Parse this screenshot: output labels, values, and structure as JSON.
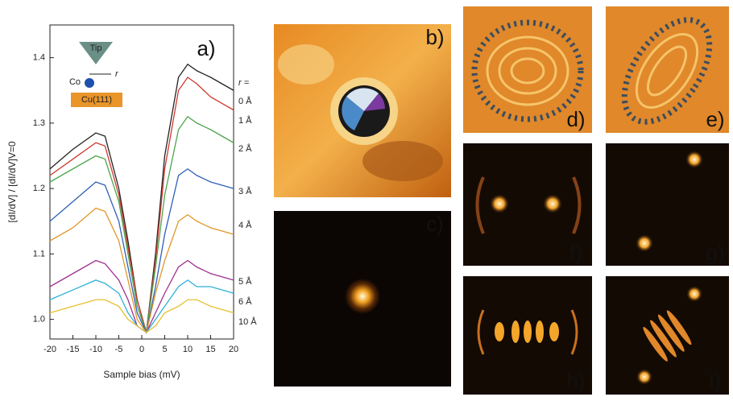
{
  "chart_data": {
    "type": "line",
    "xlabel": "Sample bias (mV)",
    "ylabel": "[dI/dV] / [dI/dV]V=0",
    "legend_title": "r =",
    "x": [
      -20,
      -15,
      -10,
      -8,
      -5,
      -3,
      -1,
      1,
      3,
      5,
      8,
      10,
      12,
      15,
      20
    ],
    "xlim": [
      -20,
      20
    ],
    "xticks": [
      -20,
      -15,
      -10,
      -5,
      0,
      5,
      10,
      15,
      20
    ],
    "ylim": [
      0.97,
      1.45
    ],
    "yticks": [
      {
        "value": 1,
        "label": "1.0"
      },
      1.1,
      1.2,
      1.3,
      1.4
    ],
    "series": [
      {
        "name": "0 Å",
        "color": "#222222",
        "values": [
          1.23,
          1.26,
          1.285,
          1.28,
          1.2,
          1.12,
          1.03,
          0.98,
          1.1,
          1.25,
          1.37,
          1.39,
          1.38,
          1.37,
          1.35
        ]
      },
      {
        "name": "1 Å",
        "color": "#d0392f",
        "values": [
          1.22,
          1.245,
          1.27,
          1.265,
          1.19,
          1.11,
          1.03,
          0.98,
          1.09,
          1.23,
          1.35,
          1.37,
          1.36,
          1.34,
          1.32
        ]
      },
      {
        "name": "2 Å",
        "color": "#4ca64c",
        "values": [
          1.21,
          1.23,
          1.25,
          1.245,
          1.18,
          1.1,
          1.02,
          0.98,
          1.08,
          1.19,
          1.29,
          1.31,
          1.3,
          1.29,
          1.27
        ]
      },
      {
        "name": "3 Å",
        "color": "#2e5fb8",
        "values": [
          1.15,
          1.18,
          1.21,
          1.205,
          1.15,
          1.08,
          1.01,
          0.98,
          1.05,
          1.13,
          1.22,
          1.23,
          1.22,
          1.21,
          1.2
        ]
      },
      {
        "name": "4 Å",
        "color": "#e0972a",
        "values": [
          1.12,
          1.14,
          1.17,
          1.165,
          1.12,
          1.06,
          1.0,
          0.98,
          1.04,
          1.09,
          1.15,
          1.16,
          1.15,
          1.14,
          1.13
        ]
      },
      {
        "name": "5 Å",
        "color": "#a0308f",
        "values": [
          1.05,
          1.07,
          1.09,
          1.085,
          1.06,
          1.03,
          0.99,
          0.98,
          1.01,
          1.04,
          1.08,
          1.09,
          1.08,
          1.07,
          1.06
        ]
      },
      {
        "name": "6 Å",
        "color": "#2fb0d8",
        "values": [
          1.03,
          1.045,
          1.06,
          1.055,
          1.04,
          1.01,
          0.99,
          0.98,
          1.0,
          1.02,
          1.05,
          1.06,
          1.05,
          1.05,
          1.04
        ]
      },
      {
        "name": "10 Å",
        "color": "#e6c02e",
        "values": [
          1.01,
          1.02,
          1.03,
          1.03,
          1.02,
          1.0,
          0.99,
          0.98,
          0.99,
          1.01,
          1.02,
          1.03,
          1.03,
          1.02,
          1.01
        ]
      }
    ],
    "inset": {
      "tip": "Tip",
      "atom": "Co",
      "distance": "r",
      "surface": "Cu(111)"
    }
  },
  "panels": [
    "a)",
    "b)",
    "c)",
    "d)",
    "e)",
    "f)",
    "g)",
    "h)",
    "i)"
  ]
}
